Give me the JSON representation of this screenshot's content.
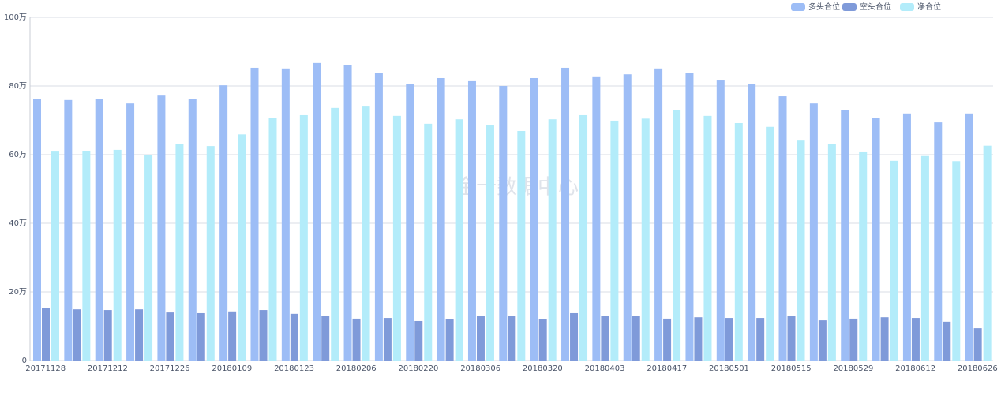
{
  "chart_data": {
    "type": "bar",
    "watermark": "金十数据中心",
    "categories": [
      "20171128",
      null,
      "20171212",
      null,
      "20171226",
      null,
      "20180109",
      null,
      "20180123",
      null,
      "20180206",
      null,
      "20180220",
      null,
      "20180306",
      null,
      "20180320",
      null,
      "20180403",
      null,
      "20180417",
      null,
      "20180501",
      null,
      "20180515",
      null,
      "20180529",
      null,
      "20180612",
      null,
      "20180626"
    ],
    "series": [
      {
        "name": "多头合位",
        "color": "#9dbdf6",
        "values": [
          76.3,
          75.9,
          76.1,
          74.9,
          77.2,
          76.3,
          80.2,
          85.3,
          85.1,
          86.7,
          86.2,
          83.7,
          80.5,
          82.3,
          81.4,
          80.0,
          82.3,
          85.3,
          82.8,
          83.4,
          85.1,
          83.9,
          81.6,
          80.5,
          77.0,
          74.9,
          72.9,
          70.8,
          72.0,
          69.4,
          72.0
        ]
      },
      {
        "name": "空头合位",
        "color": "#7f9ad9",
        "values": [
          15.4,
          14.9,
          14.7,
          14.9,
          14.0,
          13.8,
          14.3,
          14.7,
          13.6,
          13.1,
          12.2,
          12.4,
          11.5,
          12.0,
          12.9,
          13.1,
          12.0,
          13.8,
          12.9,
          12.9,
          12.2,
          12.6,
          12.4,
          12.4,
          12.9,
          11.7,
          12.2,
          12.6,
          12.4,
          11.3,
          9.4
        ]
      },
      {
        "name": "净合位",
        "color": "#b3ecfa",
        "values": [
          60.9,
          61.0,
          61.4,
          60.0,
          63.2,
          62.5,
          65.9,
          70.6,
          71.5,
          73.6,
          74.0,
          71.3,
          69.0,
          70.3,
          68.5,
          66.9,
          70.3,
          71.5,
          69.9,
          70.5,
          72.9,
          71.3,
          69.2,
          68.1,
          64.1,
          63.2,
          60.7,
          58.2,
          59.6,
          58.1,
          62.6
        ]
      }
    ],
    "ylim": [
      0,
      100
    ],
    "yticks": [
      0,
      {
        "value": 20,
        "label": "20万"
      },
      {
        "value": 40,
        "label": "40万"
      },
      {
        "value": 60,
        "label": "60万"
      },
      {
        "value": 80,
        "label": "80万"
      },
      {
        "value": 100,
        "label": "100万"
      }
    ],
    "grid": true,
    "legend": "top-right"
  }
}
